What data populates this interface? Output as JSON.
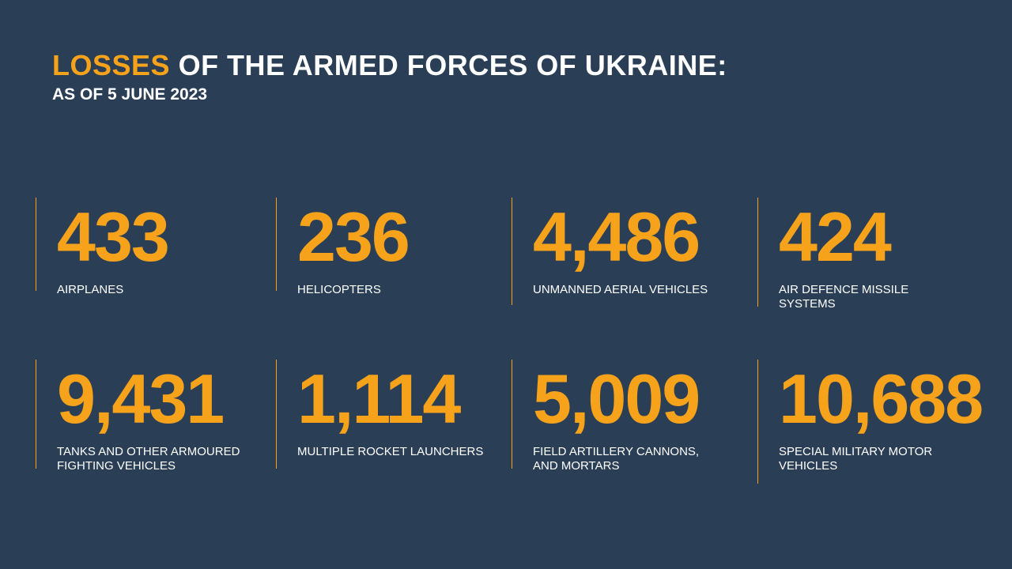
{
  "header": {
    "highlight": "LOSSES",
    "title": "OF THE ARMED FORCES OF UKRAINE:",
    "subtitle": "AS OF 5 JUNE 2023"
  },
  "items": [
    {
      "number": "433",
      "label": [
        "AIRPLANES"
      ]
    },
    {
      "number": "236",
      "label": [
        "HELICOPTERS"
      ]
    },
    {
      "number": "4,486",
      "label": [
        "UNMANNED AERIAL VEHICLES"
      ]
    },
    {
      "number": "424",
      "label": [
        "AIR DEFENCE MISSILE",
        "SYSTEMS"
      ]
    },
    {
      "number": "9,431",
      "label": [
        "TANKS AND OTHER ARMOURED",
        "FIGHTING VEHICLES"
      ]
    },
    {
      "number": "1,114",
      "label": [
        "MULTIPLE ROCKET LAUNCHERS"
      ]
    },
    {
      "number": "5,009",
      "label": [
        "FIELD ARTILLERY CANNONS,",
        "AND MORTARS"
      ]
    },
    {
      "number": "10,688",
      "label": [
        "SPECIAL MILITARY MOTOR",
        "VEHICLES"
      ]
    }
  ]
}
